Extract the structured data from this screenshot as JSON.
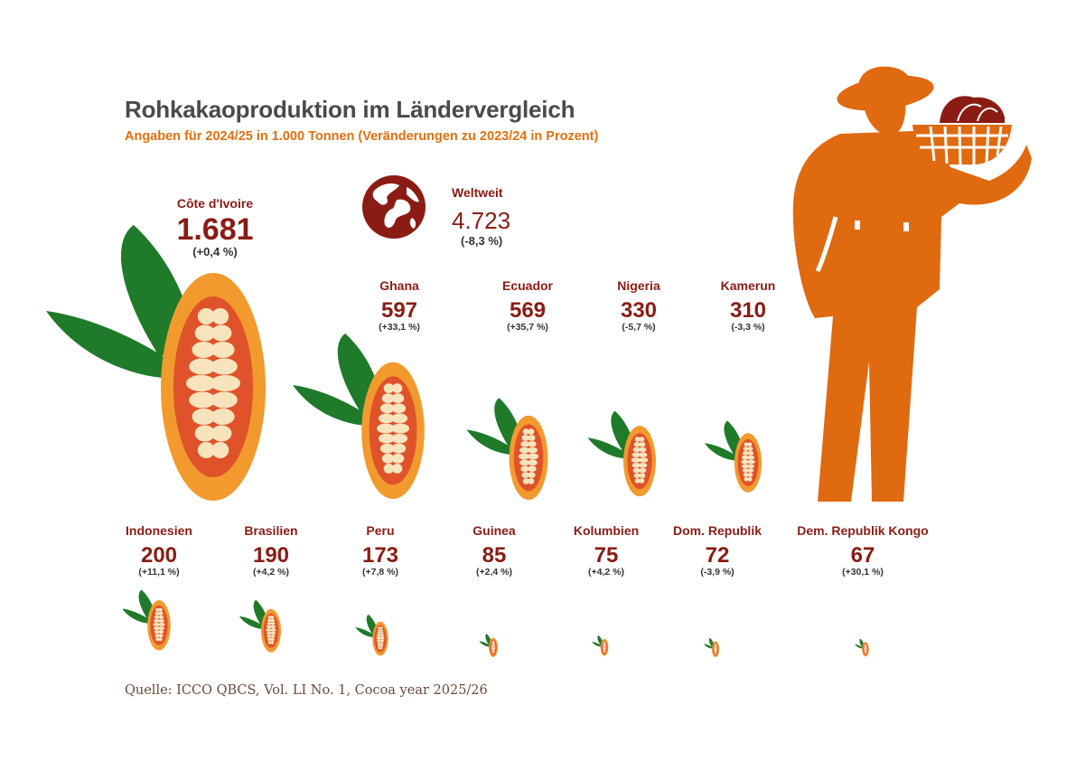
{
  "header": {
    "title": "Rohkakaoproduktion im Ländervergleich",
    "subtitle": "Angaben für 2024/25 in 1.000 Tonnen (Veränderungen zu 2023/24 in Prozent)"
  },
  "worldwide": {
    "label": "Weltweit",
    "value": "4.723",
    "change": "(-8,3 %)"
  },
  "source": "Quelle: ICCO QBCS, Vol. LI No. 1, Cocoa year 2025/26",
  "colors": {
    "title": "#4a4a4a",
    "accent": "#e07010",
    "value_red": "#8a1c14",
    "pod_orange": "#f29a2e",
    "pod_inner": "#e0522a",
    "bean_cream": "#f7e4bd",
    "leaf_green": "#1f7a2a"
  },
  "icons": {
    "globe": "globe-icon",
    "farmer": "cocoa-farmer-illustration",
    "pod": "cocoa-pod-icon"
  },
  "chart_data": {
    "type": "bar",
    "unit": "1.000 Tonnen",
    "categories": [
      "Côte d'Ivoire",
      "Ghana",
      "Ecuador",
      "Nigeria",
      "Kamerun",
      "Indonesien",
      "Brasilien",
      "Peru",
      "Guinea",
      "Kolumbien",
      "Dom. Republik",
      "Dem. Republik Kongo"
    ],
    "values": [
      1681,
      597,
      569,
      330,
      310,
      200,
      190,
      173,
      85,
      75,
      72,
      67
    ],
    "value_labels": [
      "1.681",
      "597",
      "569",
      "330",
      "310",
      "200",
      "190",
      "173",
      "85",
      "75",
      "72",
      "67"
    ],
    "change_labels": [
      "(+0,4 %)",
      "(+33,1 %)",
      "(+35,7 %)",
      "(-5,7 %)",
      "(-3,3 %)",
      "(+11,1 %)",
      "(+4,2 %)",
      "(+7,8 %)",
      "(+2,4 %)",
      "(+4,2 %)",
      "(-3,9 %)",
      "(+30,1 %)"
    ],
    "changes_percent": [
      0.4,
      33.1,
      35.7,
      -5.7,
      -3.3,
      11.1,
      4.2,
      7.8,
      2.4,
      4.2,
      -3.9,
      30.1
    ],
    "world_total": 4723,
    "world_change_percent": -8.3
  }
}
